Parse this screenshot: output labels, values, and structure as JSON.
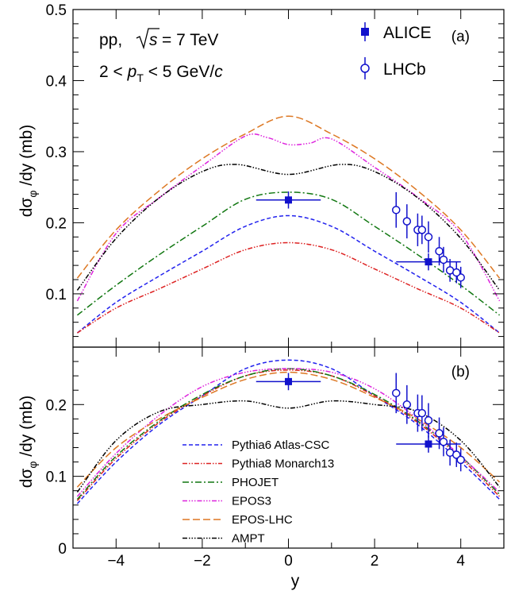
{
  "chart_data": [
    {
      "panel_label": "(a)",
      "type": "line",
      "ylabel": "dσ_φ/dy (mb)",
      "xlim": [
        -5,
        5
      ],
      "ylim": [
        0.025,
        0.5
      ],
      "yticks": [
        "0.1",
        "0.2",
        "0.3",
        "0.4",
        "0.5"
      ],
      "annotation": {
        "system": "pp,",
        "sqrt_s": "= 7 TeV",
        "pt_range": "2 < p_T < 5 GeV/c"
      },
      "series": [
        {
          "name": "Pythia6 Atlas-CSC",
          "color": "#2222ee",
          "dash": "5,3",
          "x": [
            -4.9,
            -4,
            -3,
            -2,
            -1,
            0,
            1,
            2,
            3,
            4,
            4.9
          ],
          "y": [
            0.045,
            0.088,
            0.125,
            0.16,
            0.195,
            0.21,
            0.195,
            0.16,
            0.125,
            0.088,
            0.045
          ]
        },
        {
          "name": "Pythia8 Monarch13",
          "color": "#dd2222",
          "dash": "6,2,1.5,2,1.5,2",
          "x": [
            -4.9,
            -4,
            -3,
            -2,
            -1,
            0,
            1,
            2,
            3,
            4,
            4.9
          ],
          "y": [
            0.045,
            0.08,
            0.107,
            0.135,
            0.162,
            0.172,
            0.162,
            0.135,
            0.107,
            0.08,
            0.045
          ]
        },
        {
          "name": "PHOJET",
          "color": "#117711",
          "dash": "8,3,2,3",
          "x": [
            -4.9,
            -4,
            -3,
            -2,
            -1,
            0,
            1,
            2,
            3,
            4,
            4.9
          ],
          "y": [
            0.07,
            0.112,
            0.155,
            0.195,
            0.233,
            0.243,
            0.233,
            0.195,
            0.155,
            0.112,
            0.07
          ]
        },
        {
          "name": "EPOS3",
          "color": "#dd22dd",
          "dash": "6,2,1.5,2,1.5,2,1.5,2",
          "x": [
            -4.9,
            -4,
            -3,
            -2,
            -1,
            -0.5,
            0,
            0.5,
            1,
            2,
            3,
            4,
            4.9
          ],
          "y": [
            0.09,
            0.185,
            0.235,
            0.28,
            0.322,
            0.32,
            0.31,
            0.312,
            0.318,
            0.278,
            0.236,
            0.185,
            0.09
          ]
        },
        {
          "name": "EPOS-LHC",
          "color": "#dd7722",
          "dash": "9,4",
          "x": [
            -4.9,
            -4,
            -3,
            -2,
            -1,
            0,
            1,
            2,
            3,
            4,
            4.9
          ],
          "y": [
            0.122,
            0.19,
            0.245,
            0.29,
            0.325,
            0.35,
            0.325,
            0.29,
            0.245,
            0.19,
            0.122
          ]
        },
        {
          "name": "AMPT",
          "color": "#000000",
          "dash": "6,2,1.5,2,1.5,2,1.5,2",
          "x": [
            -4.9,
            -4,
            -3,
            -2,
            -1.2,
            0,
            1.2,
            2,
            3,
            4,
            4.9
          ],
          "y": [
            0.105,
            0.178,
            0.235,
            0.272,
            0.282,
            0.268,
            0.282,
            0.272,
            0.235,
            0.178,
            0.105
          ]
        }
      ],
      "data": [
        {
          "name": "ALICE",
          "marker": "filled-square",
          "color": "#1111cc",
          "points": [
            {
              "x": 0,
              "y": 0.232,
              "xerr": 0.75,
              "yerr": 0.012
            },
            {
              "x": 3.25,
              "y": 0.145,
              "xerr": 0.75,
              "yerr": 0.012
            }
          ]
        },
        {
          "name": "LHCb",
          "marker": "open-circle",
          "color": "#1111cc",
          "points": [
            {
              "x": 2.5,
              "y": 0.218,
              "yerr": 0.025
            },
            {
              "x": 2.75,
              "y": 0.202,
              "yerr": 0.024
            },
            {
              "x": 3.0,
              "y": 0.19,
              "yerr": 0.023
            },
            {
              "x": 3.25,
              "y": 0.18,
              "yerr": 0.022
            },
            {
              "x": 3.5,
              "y": 0.16,
              "yerr": 0.02
            },
            {
              "x": 3.75,
              "y": 0.133,
              "yerr": 0.016
            },
            {
              "x": 4.0,
              "y": 0.123,
              "yerr": 0.015
            },
            {
              "x": 3.1,
              "y": 0.19,
              "yerr": 0.02
            },
            {
              "x": 3.6,
              "y": 0.148,
              "yerr": 0.018
            },
            {
              "x": 3.9,
              "y": 0.13,
              "yerr": 0.015
            }
          ]
        }
      ],
      "legend": [
        "ALICE",
        "LHCb"
      ]
    },
    {
      "panel_label": "(b)",
      "type": "line",
      "xlabel": "y",
      "ylabel": "dσ_φ/dy (mb)",
      "xlim": [
        -5,
        5
      ],
      "ylim": [
        0,
        0.28
      ],
      "xticks": [
        "−4",
        "−2",
        "0",
        "2",
        "4"
      ],
      "yticks": [
        "0",
        "0.1",
        "0.2"
      ],
      "series": [
        {
          "name": "Pythia6 Atlas-CSC",
          "color": "#2222ee",
          "dash": "5,3",
          "x": [
            -4.9,
            -4,
            -3,
            -2,
            -1,
            0,
            1,
            2,
            3,
            4,
            4.9
          ],
          "y": [
            0.062,
            0.12,
            0.172,
            0.212,
            0.25,
            0.262,
            0.25,
            0.212,
            0.172,
            0.12,
            0.068
          ]
        },
        {
          "name": "Pythia8 Monarch13",
          "color": "#dd2222",
          "dash": "6,2,1.5,2,1.5,2",
          "x": [
            -4.9,
            -4,
            -3,
            -2,
            -1,
            0,
            1,
            2,
            3,
            4,
            4.9
          ],
          "y": [
            0.066,
            0.125,
            0.175,
            0.212,
            0.24,
            0.248,
            0.24,
            0.212,
            0.175,
            0.125,
            0.072
          ]
        },
        {
          "name": "PHOJET",
          "color": "#117711",
          "dash": "8,3,2,3",
          "x": [
            -4.9,
            -4,
            -3,
            -2,
            -1,
            0,
            1,
            2,
            3,
            4,
            4.9
          ],
          "y": [
            0.068,
            0.128,
            0.177,
            0.214,
            0.24,
            0.25,
            0.24,
            0.214,
            0.177,
            0.128,
            0.075
          ]
        },
        {
          "name": "EPOS3",
          "color": "#dd22dd",
          "dash": "6,2,1.5,2,1.5,2,1.5,2",
          "x": [
            -4.9,
            -4,
            -3,
            -2,
            -1,
            0,
            1,
            2,
            3,
            4,
            4.9
          ],
          "y": [
            0.072,
            0.132,
            0.185,
            0.225,
            0.245,
            0.25,
            0.245,
            0.222,
            0.18,
            0.128,
            0.078
          ]
        },
        {
          "name": "EPOS-LHC",
          "color": "#dd7722",
          "dash": "9,4",
          "x": [
            -4.9,
            -4,
            -3,
            -2,
            -1,
            0,
            1,
            2,
            3,
            4,
            4.9
          ],
          "y": [
            0.085,
            0.14,
            0.18,
            0.21,
            0.235,
            0.245,
            0.235,
            0.21,
            0.18,
            0.14,
            0.092
          ]
        },
        {
          "name": "AMPT",
          "color": "#000000",
          "dash": "6,2,1.5,2,1.5,2,1.5,2",
          "x": [
            -4.9,
            -4,
            -3,
            -2,
            -1,
            0,
            1,
            2,
            3,
            4,
            4.9
          ],
          "y": [
            0.078,
            0.15,
            0.19,
            0.2,
            0.205,
            0.195,
            0.205,
            0.2,
            0.19,
            0.15,
            0.085
          ]
        }
      ],
      "data": [
        {
          "name": "ALICE",
          "marker": "filled-square",
          "color": "#1111cc",
          "points": [
            {
              "x": 0,
              "y": 0.232,
              "xerr": 0.75,
              "yerr": 0.012
            },
            {
              "x": 3.25,
              "y": 0.145,
              "xerr": 0.75,
              "yerr": 0.012
            }
          ]
        },
        {
          "name": "LHCb",
          "marker": "open-circle",
          "color": "#1111cc",
          "points": [
            {
              "x": 2.5,
              "y": 0.216,
              "yerr": 0.028
            },
            {
              "x": 2.75,
              "y": 0.2,
              "yerr": 0.027
            },
            {
              "x": 3.0,
              "y": 0.188,
              "yerr": 0.026
            },
            {
              "x": 3.1,
              "y": 0.188,
              "yerr": 0.025
            },
            {
              "x": 3.25,
              "y": 0.178,
              "yerr": 0.024
            },
            {
              "x": 3.5,
              "y": 0.16,
              "yerr": 0.022
            },
            {
              "x": 3.6,
              "y": 0.148,
              "yerr": 0.02
            },
            {
              "x": 3.75,
              "y": 0.133,
              "yerr": 0.018
            },
            {
              "x": 3.9,
              "y": 0.13,
              "yerr": 0.017
            },
            {
              "x": 4.0,
              "y": 0.123,
              "yerr": 0.016
            }
          ]
        }
      ],
      "legend": [
        "Pythia6 Atlas-CSC",
        "Pythia8 Monarch13",
        "PHOJET",
        "EPOS3",
        "EPOS-LHC",
        "AMPT"
      ]
    }
  ]
}
